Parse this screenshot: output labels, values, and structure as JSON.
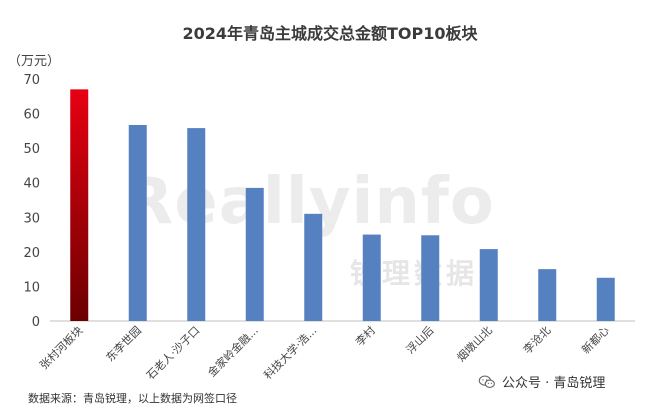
{
  "chart_data": {
    "type": "bar",
    "title": "2024年青岛主城成交总金额TOP10板块",
    "ylabel": "（万元）",
    "ylim": [
      0,
      70
    ],
    "yticks": [
      0,
      10,
      20,
      30,
      40,
      50,
      60,
      70
    ],
    "grid": false,
    "categories": [
      "张村河板块",
      "东李世园",
      "石老人·沙子口",
      "金家岭金融...",
      "科技大学·浩...",
      "李村",
      "浮山后",
      "烟墩山北",
      "李沧北",
      "新都心"
    ],
    "values": [
      67,
      56.7,
      55.8,
      38.5,
      31,
      25,
      24.8,
      20.8,
      15,
      12.5
    ],
    "colors": {
      "primary": "#5581c1",
      "highlight_top": "#e60012",
      "highlight_bottom": "#6b0000"
    }
  },
  "footer": {
    "source": "数据来源：青岛锐理，以上数据为网签口径",
    "wechat_label": "公众号 · 青岛锐理"
  },
  "watermark": {
    "text": "Reallyinfo",
    "text_cn": "锐理数据"
  }
}
